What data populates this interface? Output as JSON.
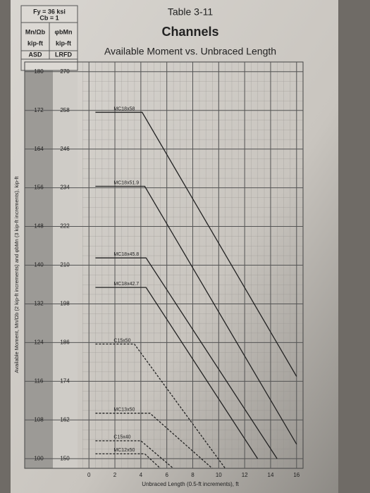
{
  "chart_data": {
    "type": "line",
    "table_number": "Table 3-11",
    "title": "Channels",
    "subtitle": "Available Moment vs. Unbraced Length",
    "header": {
      "material": "Fy = 36 ksi",
      "cb": "Cb = 1",
      "asd_heading": "Mn/Ωb",
      "lrfd_heading": "φbMn",
      "asd_unit": "kip-ft",
      "lrfd_unit": "kip-ft",
      "asd_label": "ASD",
      "lrfd_label": "LRFD"
    },
    "xlabel": "Unbraced Length (0.5-ft increments), ft",
    "ylabel": "Available Moment, Mn/Ωb (2 kip-ft increments) and φbMn (3 kip-ft increments), kip-ft",
    "xlim": [
      -0.5,
      16.5
    ],
    "xticks": [
      0,
      2,
      4,
      6,
      8,
      10,
      12,
      14,
      16
    ],
    "ylim": [
      98,
      182
    ],
    "yticks": [
      100,
      108,
      116,
      124,
      132,
      140,
      148,
      156,
      164,
      172,
      180
    ],
    "y2lim": [
      147,
      273
    ],
    "y2ticks": [
      150,
      162,
      174,
      186,
      198,
      210,
      222,
      234,
      246,
      258,
      270
    ],
    "grid": true,
    "series": [
      {
        "name": "MC18x58",
        "color": "#222222",
        "dashed": false,
        "x": [
          0.5,
          4.1,
          16
        ],
        "values": [
          171.6,
          171.6,
          117
        ]
      },
      {
        "name": "MC18x51.9",
        "color": "#222222",
        "dashed": false,
        "x": [
          0.5,
          4.3,
          16
        ],
        "values": [
          156.3,
          156.3,
          103
        ]
      },
      {
        "name": "MC18x45.8",
        "color": "#222222",
        "dashed": false,
        "x": [
          0.5,
          4.4,
          14.5
        ],
        "values": [
          141.5,
          141.5,
          100
        ]
      },
      {
        "name": "MC18x42.7",
        "color": "#222222",
        "dashed": false,
        "x": [
          0.5,
          4.4,
          13
        ],
        "values": [
          135.4,
          135.4,
          100
        ]
      },
      {
        "name": "C15x50",
        "color": "#222222",
        "dashed": true,
        "x": [
          0.5,
          3.5,
          10.5
        ],
        "values": [
          123.7,
          123.7,
          98
        ]
      },
      {
        "name": "MC13x50",
        "color": "#222222",
        "dashed": true,
        "x": [
          0.5,
          4.7,
          9.5
        ],
        "values": [
          109.4,
          109.4,
          98
        ]
      },
      {
        "name": "C15x40",
        "color": "#222222",
        "dashed": true,
        "x": [
          0.5,
          4,
          6.5
        ],
        "values": [
          103.7,
          103.7,
          98
        ]
      },
      {
        "name": "MC12x50",
        "color": "#222222",
        "dashed": true,
        "x": [
          0.5,
          4.3,
          5.5
        ],
        "values": [
          101,
          101,
          98
        ]
      }
    ]
  }
}
